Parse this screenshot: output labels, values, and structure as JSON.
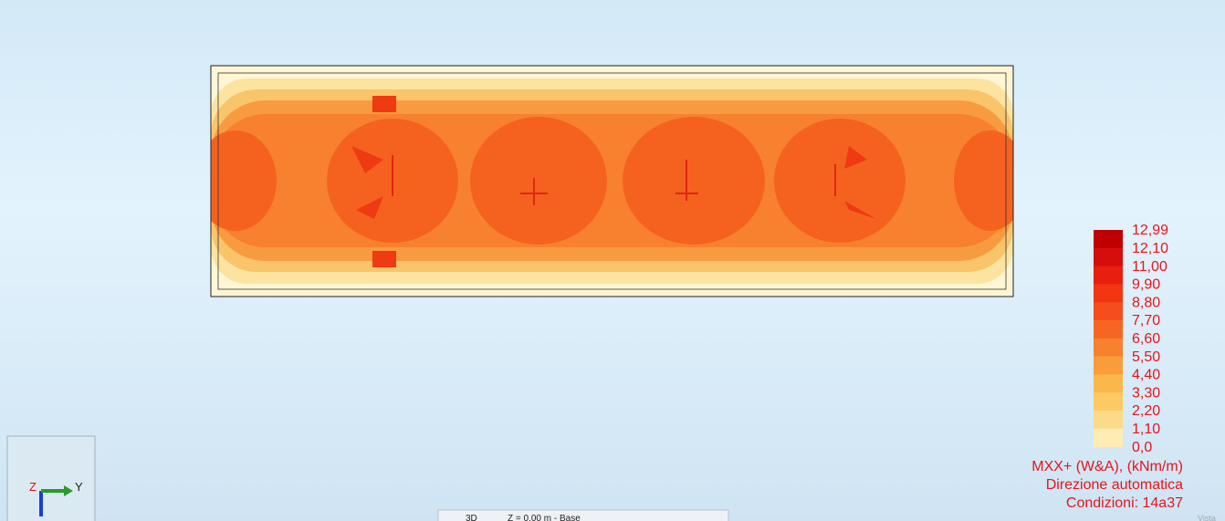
{
  "legend": {
    "items": [
      {
        "label": "12,99",
        "color": "#c00000"
      },
      {
        "label": "12,10",
        "color": "#d50d0b"
      },
      {
        "label": "11,00",
        "color": "#e81e0e"
      },
      {
        "label": "9,90",
        "color": "#f23512"
      },
      {
        "label": "8,80",
        "color": "#f54d1b"
      },
      {
        "label": "7,70",
        "color": "#f66623"
      },
      {
        "label": "6,60",
        "color": "#f7812e"
      },
      {
        "label": "5,50",
        "color": "#f99d3a"
      },
      {
        "label": "4,40",
        "color": "#fab84a"
      },
      {
        "label": "3,30",
        "color": "#fbca62"
      },
      {
        "label": "2,20",
        "color": "#fcdb88"
      },
      {
        "label": "1,10",
        "color": "#fdecb4"
      },
      {
        "label": "0,0"
      }
    ],
    "title": "MXX+ (W&A), (kNm/m)",
    "direction": "Direzione automatica",
    "conditions": "Condizioni: 14a37"
  },
  "axes": {
    "z": "Z",
    "y": "Y"
  },
  "toolbar": {
    "view": "3D",
    "level": "Z = 0,00 m - Base",
    "panel": "Vista"
  }
}
